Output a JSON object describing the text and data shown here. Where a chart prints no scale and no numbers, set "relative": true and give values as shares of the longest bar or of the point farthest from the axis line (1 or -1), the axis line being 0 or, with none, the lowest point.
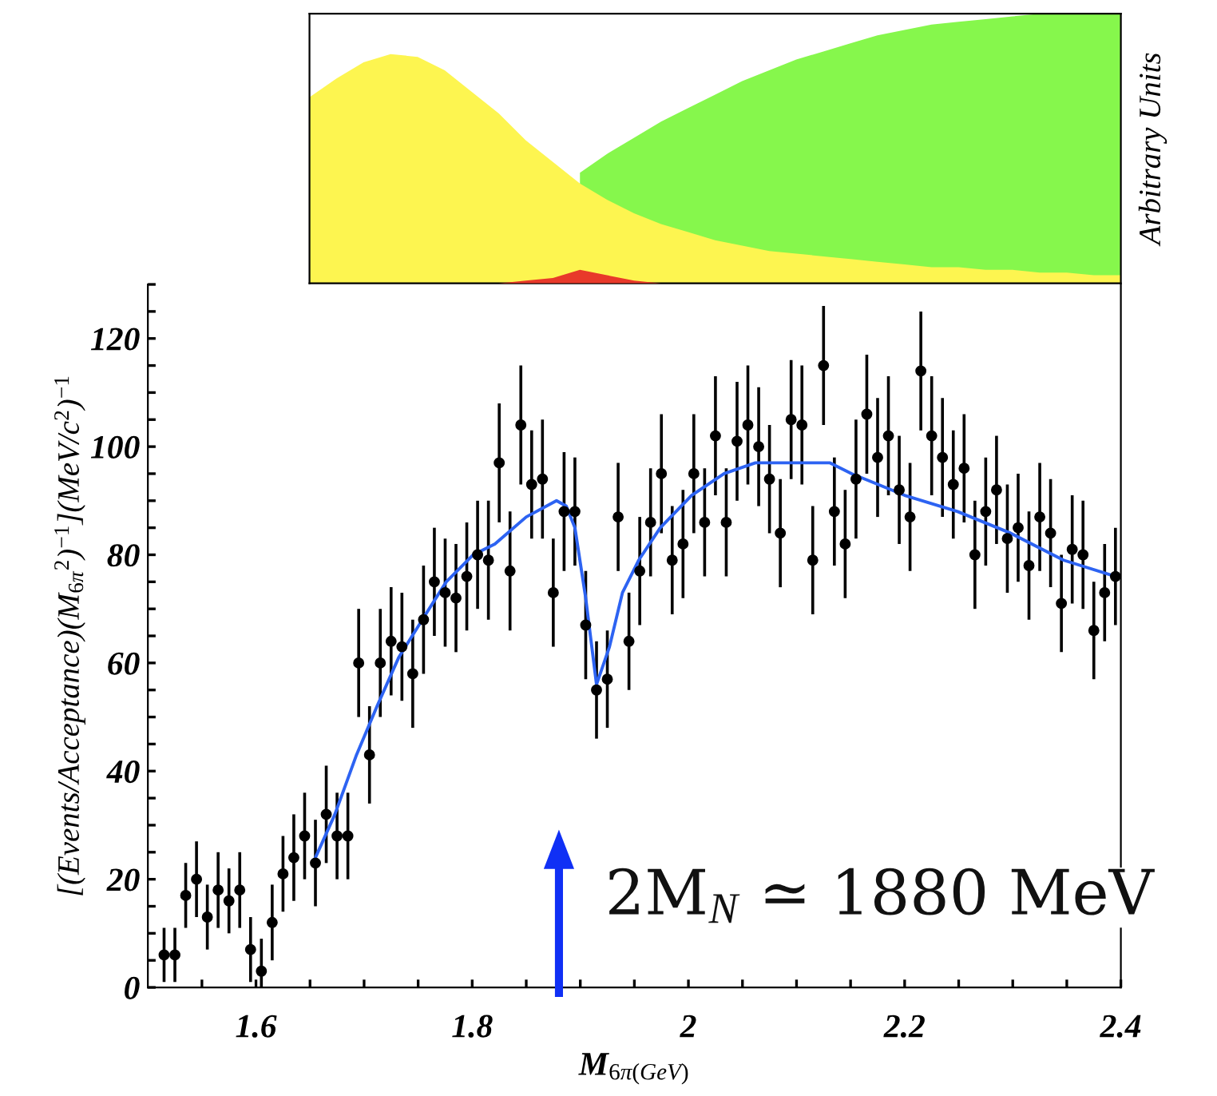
{
  "chart_data": [
    {
      "type": "area",
      "relative": true,
      "ylabel": "Arbitrary Units",
      "categories": [
        null,
        null,
        null,
        null,
        null,
        null,
        null,
        null,
        null,
        null,
        null,
        null,
        null,
        null,
        null,
        null,
        null,
        null,
        null,
        null,
        null,
        null,
        null,
        null,
        null,
        null,
        null,
        null,
        null,
        null,
        null
      ],
      "series": [
        {
          "color": "#86f74c",
          "values": [
            null,
            null,
            null,
            null,
            null,
            null,
            null,
            null,
            null,
            null,
            0.41,
            0.48,
            0.54,
            0.6,
            0.65,
            0.7,
            0.75,
            0.79,
            0.83,
            0.86,
            0.89,
            0.92,
            0.94,
            0.96,
            0.97,
            0.98,
            0.99,
            1.0,
            1.0,
            1.0,
            1.0
          ]
        },
        {
          "color": "#fdf550",
          "values": [
            0.69,
            0.76,
            0.82,
            0.85,
            0.84,
            0.79,
            0.71,
            0.63,
            0.53,
            0.45,
            0.37,
            0.31,
            0.26,
            0.22,
            0.19,
            0.16,
            0.14,
            0.12,
            0.11,
            0.1,
            0.09,
            0.08,
            0.07,
            0.06,
            0.06,
            0.05,
            0.05,
            0.04,
            0.04,
            0.03,
            0.03
          ]
        },
        {
          "color": "#e8392a",
          "values": [
            null,
            null,
            null,
            null,
            null,
            null,
            null,
            0.0,
            0.01,
            0.02,
            0.05,
            0.03,
            0.01,
            0.0,
            null,
            null,
            null,
            null,
            null,
            null,
            null,
            null,
            null,
            null,
            null,
            null,
            null,
            null,
            null,
            null,
            null
          ]
        }
      ]
    },
    {
      "type": "scatter",
      "xlabel": "M$_{6π(GeV)}$",
      "ylabel": "[(Events/Acceptance)(M$_{6π}$$^{2}$)$^{−1}$](MeV/c$^{2}$)$^{−1}$",
      "xlim": [
        1.5,
        2.4
      ],
      "ylim": [
        0,
        130
      ],
      "xticks": [
        {
          "value": 1.55,
          "label": null
        },
        1.6,
        {
          "value": 1.65,
          "label": null
        },
        {
          "value": 1.7,
          "label": null
        },
        {
          "value": 1.75,
          "label": null
        },
        1.8,
        {
          "value": 1.85,
          "label": null
        },
        {
          "value": 1.9,
          "label": null
        },
        {
          "value": 1.95,
          "label": null
        },
        2,
        {
          "value": 2.05,
          "label": null
        },
        {
          "value": 2.1,
          "label": null
        },
        {
          "value": 2.15,
          "label": null
        },
        2.2,
        {
          "value": 2.25,
          "label": null
        },
        {
          "value": 2.3,
          "label": null
        },
        {
          "value": 2.35,
          "label": null
        },
        2.4
      ],
      "yticks": [
        0,
        {
          "value": 5,
          "label": null
        },
        {
          "value": 10,
          "label": null
        },
        {
          "value": 15,
          "label": null
        },
        20,
        {
          "value": 25,
          "label": null
        },
        {
          "value": 30,
          "label": null
        },
        {
          "value": 35,
          "label": null
        },
        40,
        {
          "value": 45,
          "label": null
        },
        {
          "value": 50,
          "label": null
        },
        {
          "value": 55,
          "label": null
        },
        60,
        {
          "value": 65,
          "label": null
        },
        {
          "value": 70,
          "label": null
        },
        {
          "value": 75,
          "label": null
        },
        80,
        {
          "value": 85,
          "label": null
        },
        {
          "value": 90,
          "label": null
        },
        {
          "value": 95,
          "label": null
        },
        100,
        {
          "value": 105,
          "label": null
        },
        {
          "value": 110,
          "label": null
        },
        {
          "value": 115,
          "label": null
        },
        120,
        {
          "value": 125,
          "label": null
        },
        {
          "value": 130,
          "label": null
        }
      ],
      "annotations": [
        "2M$_{N}$ ≃ 1880 MeV"
      ],
      "series": [
        {
          "type": "scatter",
          "marker": "circle",
          "color": "#000000",
          "x": [
            1.515,
            1.525,
            1.535,
            1.545,
            1.555,
            1.565,
            1.575,
            1.585,
            1.595,
            1.605,
            1.615,
            1.625,
            1.635,
            1.645,
            1.655,
            1.665,
            1.675,
            1.685,
            1.695,
            1.705,
            1.715,
            1.725,
            1.735,
            1.745,
            1.755,
            1.765,
            1.775,
            1.785,
            1.795,
            1.805,
            1.815,
            1.825,
            1.835,
            1.845,
            1.855,
            1.865,
            1.875,
            1.885,
            1.895,
            1.905,
            1.915,
            1.925,
            1.935,
            1.945,
            1.955,
            1.965,
            1.975,
            1.985,
            1.995,
            2.005,
            2.015,
            2.025,
            2.035,
            2.045,
            2.055,
            2.065,
            2.075,
            2.085,
            2.095,
            2.105,
            2.115,
            2.125,
            2.135,
            2.145,
            2.155,
            2.165,
            2.175,
            2.185,
            2.195,
            2.205,
            2.215,
            2.225,
            2.235,
            2.245,
            2.255,
            2.265,
            2.275,
            2.285,
            2.295,
            2.305,
            2.315,
            2.325,
            2.335,
            2.345,
            2.355,
            2.365,
            2.375,
            2.385,
            2.395
          ],
          "values": [
            6,
            6,
            17,
            20,
            13,
            18,
            16,
            18,
            7,
            3,
            12,
            21,
            24,
            28,
            23,
            32,
            28,
            28,
            60,
            43,
            60,
            64,
            63,
            58,
            68,
            75,
            73,
            72,
            76,
            80,
            79,
            97,
            77,
            104,
            93,
            94,
            73,
            88,
            88,
            67,
            55,
            57,
            87,
            64,
            77,
            86,
            95,
            79,
            82,
            95,
            86,
            102,
            86,
            101,
            104,
            100,
            94,
            84,
            105,
            104,
            79,
            115,
            88,
            82,
            94,
            106,
            98,
            102,
            92,
            87,
            114,
            102,
            98,
            93,
            96,
            80,
            88,
            92,
            83,
            85,
            78,
            87,
            84,
            71,
            81,
            80,
            66,
            73,
            76
          ],
          "errors": [
            5,
            5,
            6,
            7,
            6,
            7,
            6,
            7,
            6,
            6,
            7,
            7,
            8,
            8,
            8,
            9,
            8,
            8,
            10,
            9,
            10,
            10,
            10,
            10,
            10,
            10,
            10,
            10,
            10,
            10,
            11,
            11,
            11,
            11,
            10,
            11,
            10,
            11,
            10,
            10,
            9,
            9,
            10,
            9,
            10,
            10,
            11,
            10,
            10,
            11,
            10,
            11,
            10,
            11,
            11,
            11,
            10,
            10,
            11,
            11,
            10,
            11,
            10,
            10,
            11,
            11,
            11,
            11,
            10,
            10,
            11,
            11,
            11,
            10,
            10,
            10,
            10,
            10,
            10,
            10,
            10,
            10,
            10,
            9,
            10,
            10,
            9,
            9,
            9
          ]
        },
        {
          "type": "line",
          "color": "#2d63f2",
          "x": [
            1.655,
            1.673,
            1.693,
            1.712,
            1.732,
            1.757,
            1.776,
            1.801,
            1.821,
            1.85,
            1.878,
            1.887,
            1.895,
            1.905,
            1.915,
            1.927,
            1.939,
            1.954,
            1.974,
            2.003,
            2.033,
            2.062,
            2.097,
            2.131,
            2.151,
            2.2,
            2.249,
            2.298,
            2.347,
            2.395
          ],
          "values": [
            24,
            32,
            43,
            52,
            61,
            69,
            75,
            80,
            82,
            87,
            90,
            89,
            85,
            72,
            56,
            63,
            73,
            79,
            85,
            91,
            95,
            97,
            97,
            97,
            95,
            91,
            88,
            84,
            79,
            76
          ]
        }
      ]
    }
  ]
}
